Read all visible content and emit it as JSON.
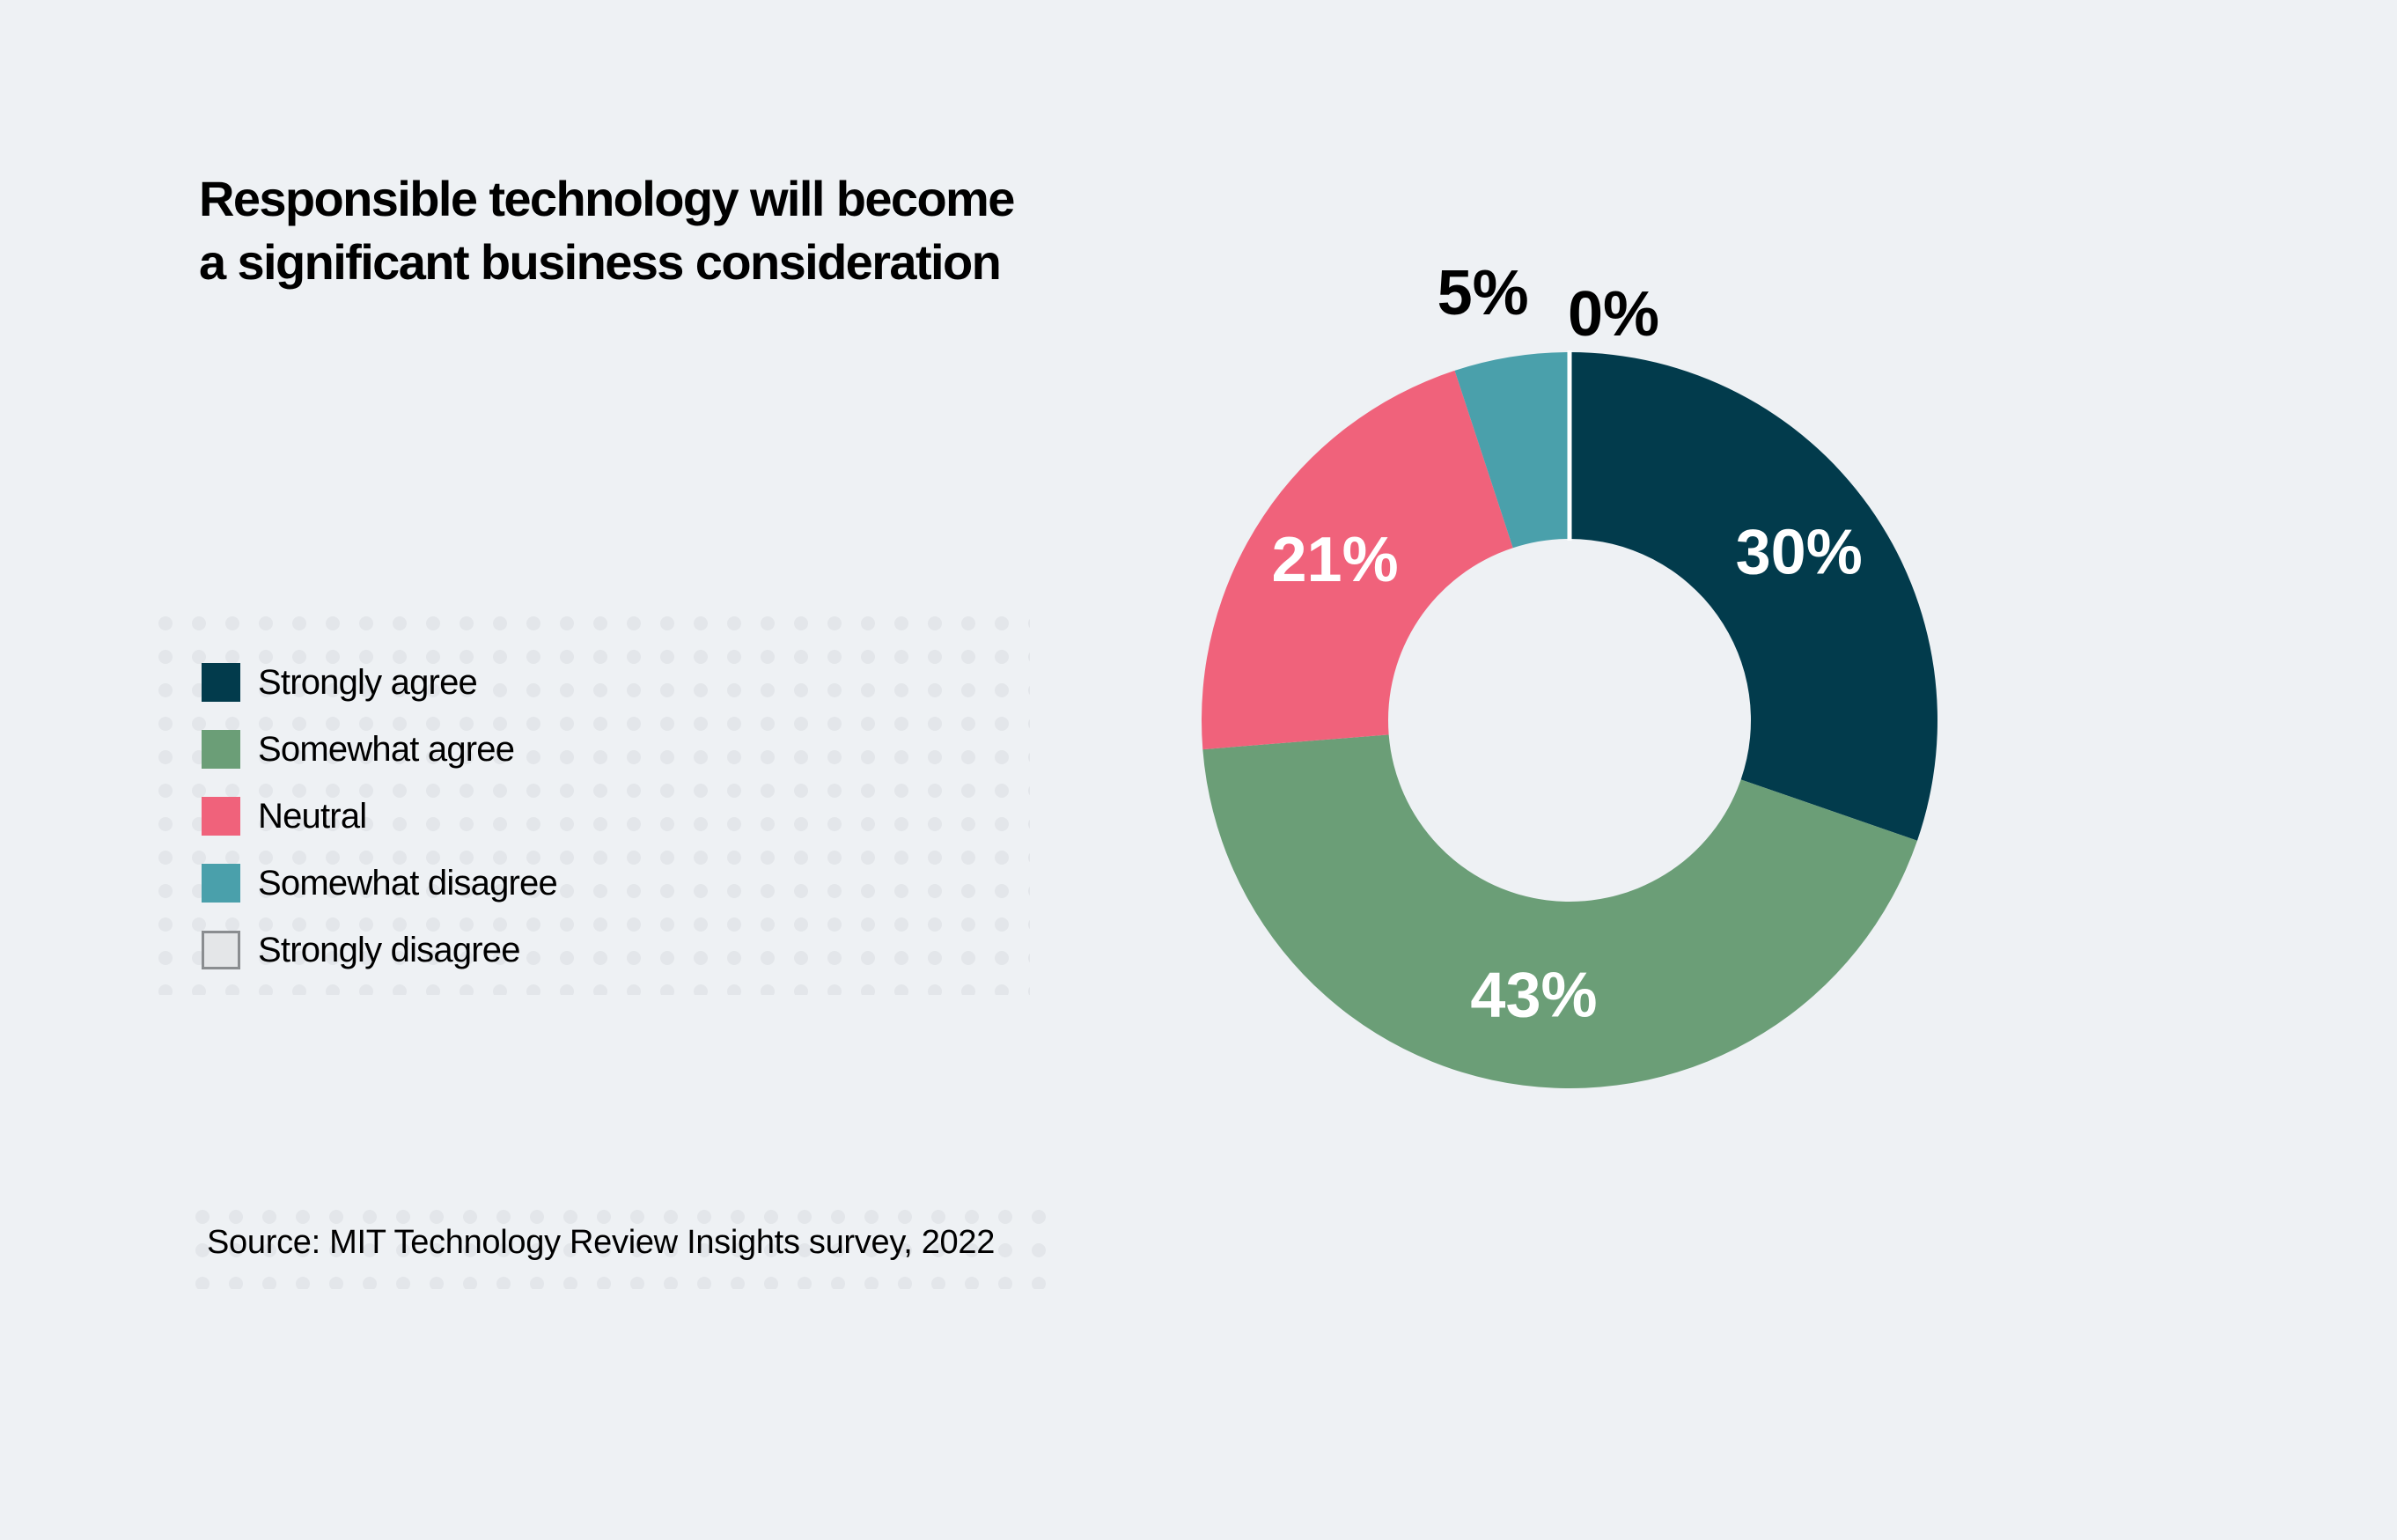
{
  "chart_data": {
    "type": "pie",
    "variant": "donut",
    "title": [
      "Responsible technology will become",
      "a significant business consideration"
    ],
    "slices": [
      {
        "category": "Strongly disagree",
        "value": 0,
        "label": "0%",
        "color": "#e4e6e8"
      },
      {
        "category": "Strongly agree",
        "value": 30,
        "label": "30%",
        "color": "#023b4c"
      },
      {
        "category": "Somewhat agree",
        "value": 43,
        "label": "43%",
        "color": "#6b9e77"
      },
      {
        "category": "Neutral",
        "value": 21,
        "label": "21%",
        "color": "#f0627b"
      },
      {
        "category": "Somewhat disagree",
        "value": 5,
        "label": "5%",
        "color": "#4aa0ab"
      }
    ],
    "legend": [
      {
        "label": "Strongly agree",
        "color": "#023b4c"
      },
      {
        "label": "Somewhat agree",
        "color": "#6b9e77"
      },
      {
        "label": "Neutral",
        "color": "#f0627b"
      },
      {
        "label": "Somewhat disagree",
        "color": "#4aa0ab"
      },
      {
        "label": "Strongly disagree",
        "color": "#e4e6e8"
      }
    ],
    "legend_position": "left",
    "source": "Source: MIT Technology Review Insights survey, 2022"
  },
  "colors": {
    "background": "#eef1f4",
    "dots": "#e3e6ea",
    "label_inside": "#ffffff",
    "label_outside": "#000000"
  }
}
